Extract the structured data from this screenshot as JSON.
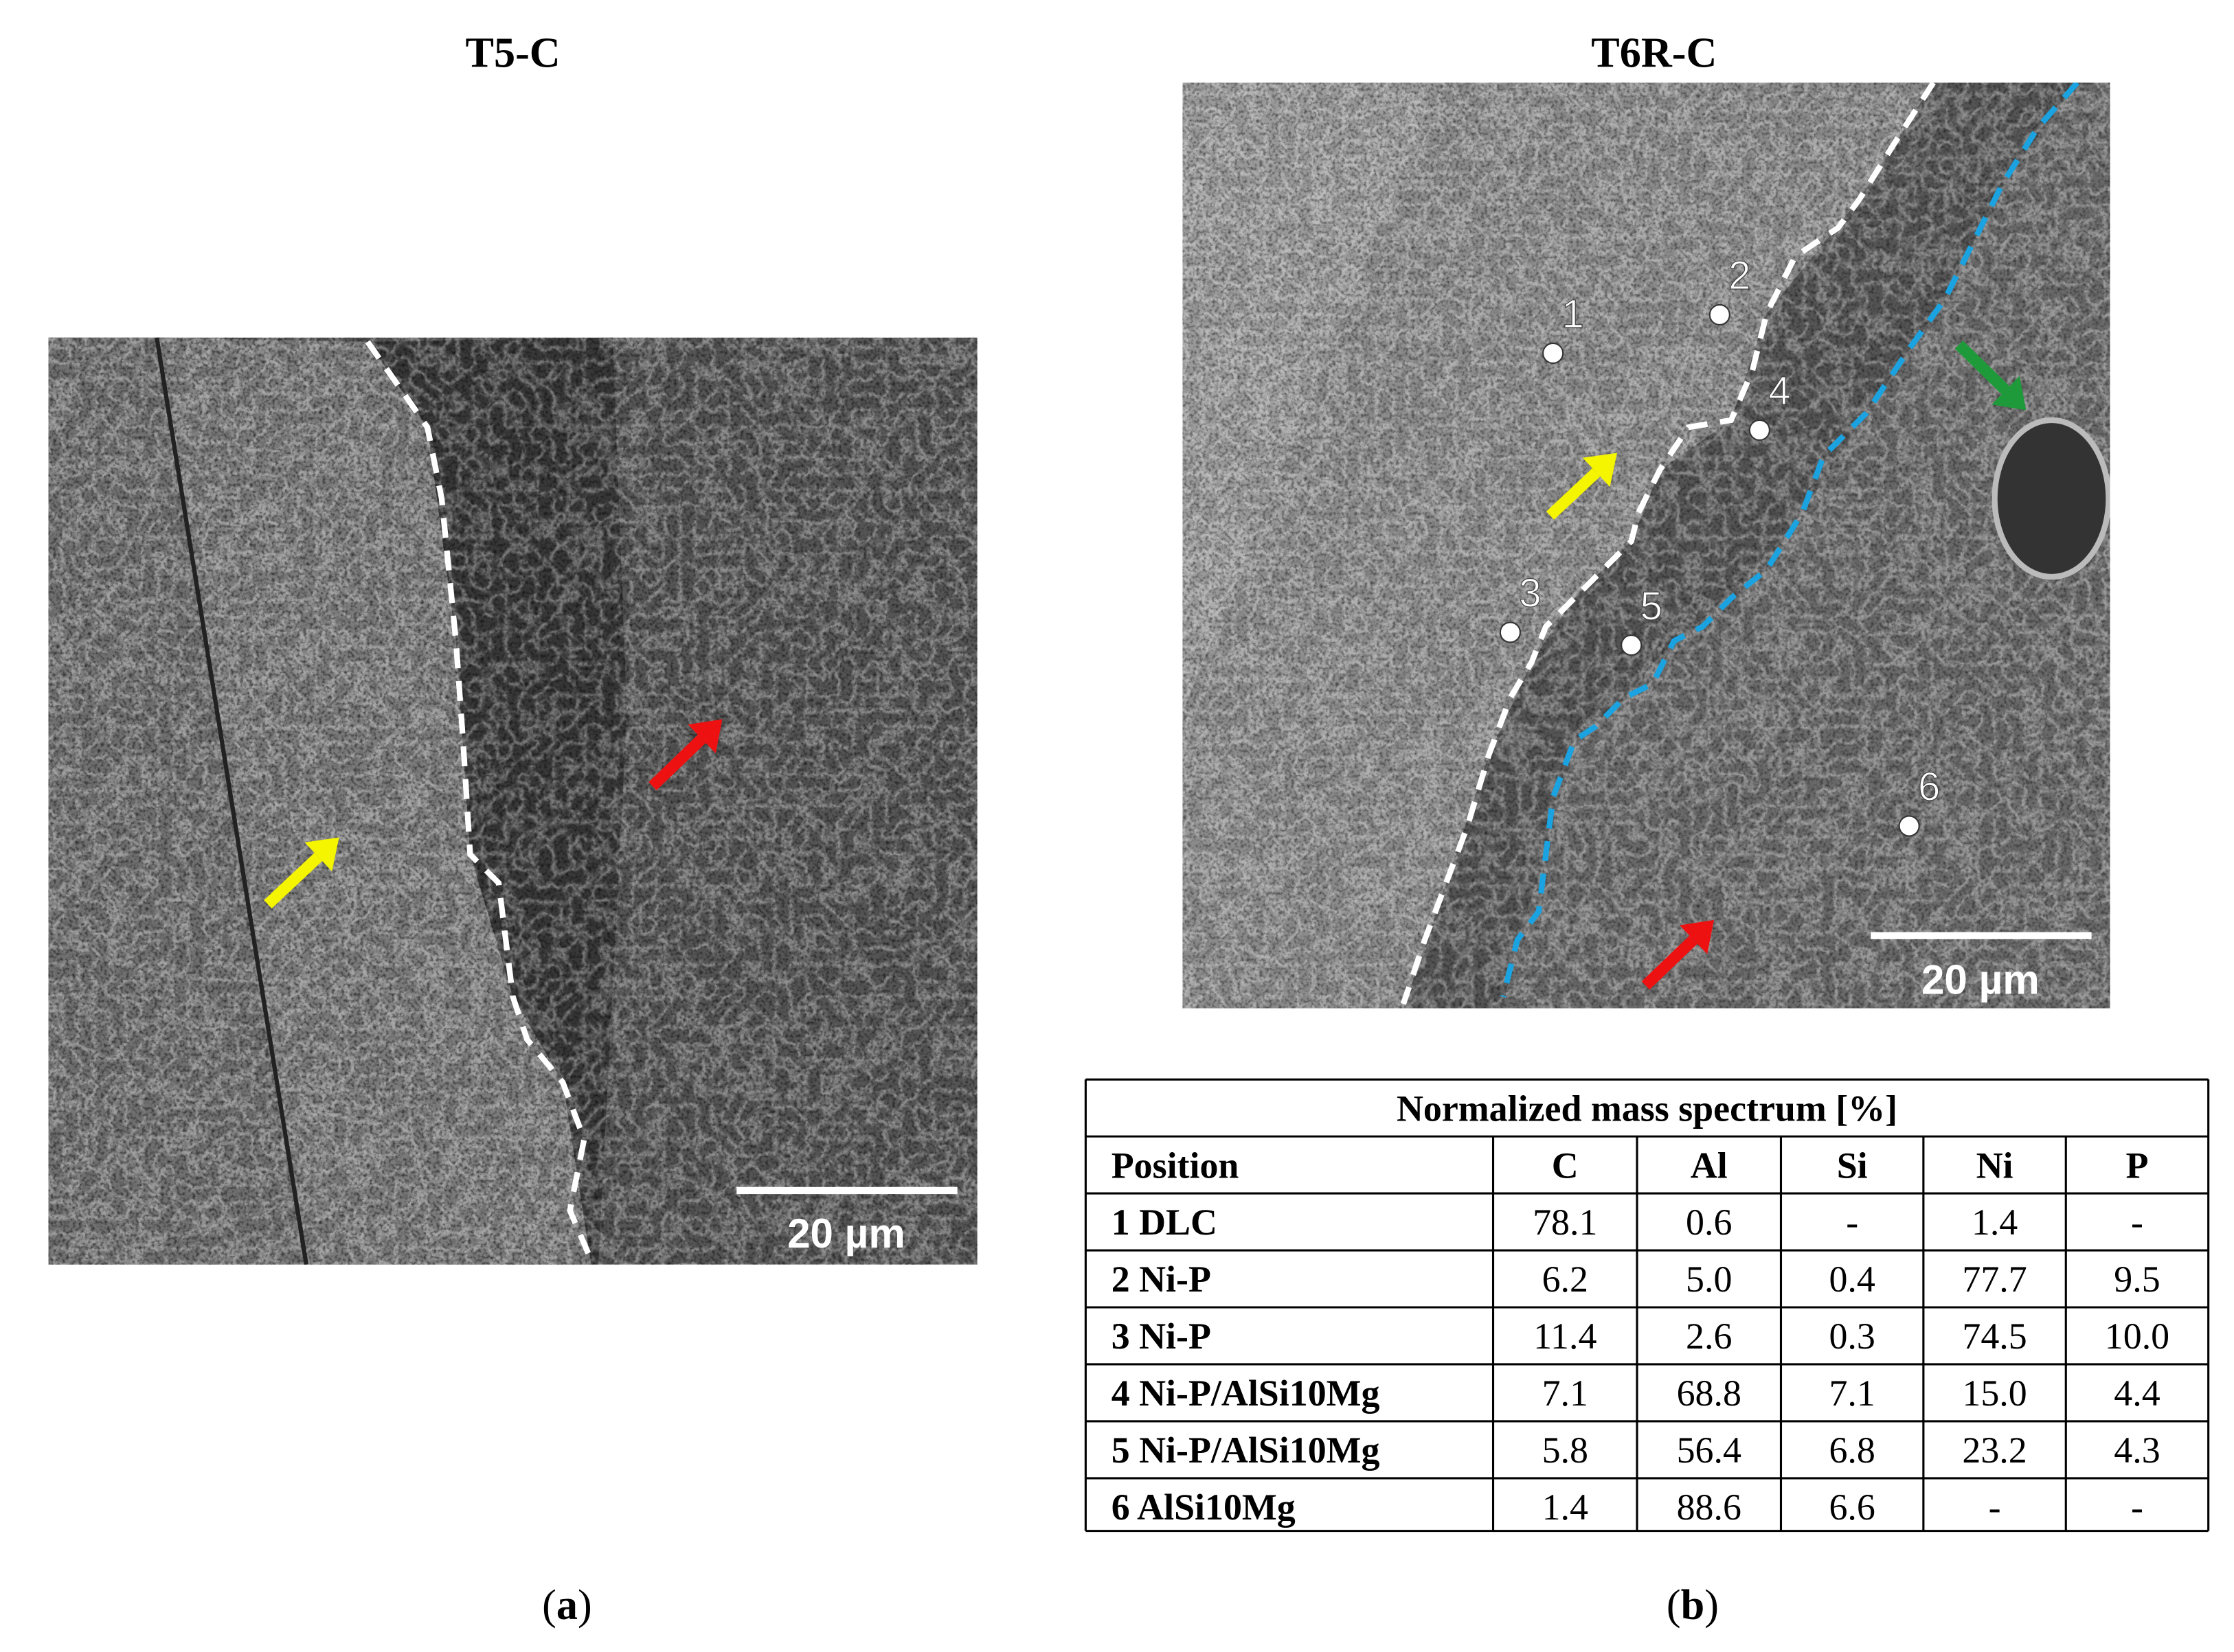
{
  "panels": [
    {
      "title": "T5-C",
      "scale_bar": "20 µm",
      "caption": [
        "(",
        "a",
        ")"
      ]
    },
    {
      "title": "T6R-C",
      "scale_bar": "20 µm",
      "points": [
        "1",
        "2",
        "3",
        "4",
        "5",
        "6"
      ],
      "caption": [
        "(",
        "b",
        ")"
      ]
    }
  ],
  "table": {
    "title": "Normalized mass spectrum [%]",
    "header": [
      "Position",
      "C",
      "Al",
      "Si",
      "Ni",
      "P"
    ],
    "rows": [
      [
        "1 DLC",
        "78.1",
        "0.6",
        "-",
        "1.4",
        "-"
      ],
      [
        "2 Ni-P",
        "6.2",
        "5.0",
        "0.4",
        "77.7",
        "9.5"
      ],
      [
        "3 Ni-P",
        "11.4",
        "2.6",
        "0.3",
        "74.5",
        "10.0"
      ],
      [
        "4 Ni-P/AlSi10Mg",
        "7.1",
        "68.8",
        "7.1",
        "15.0",
        "4.4"
      ],
      [
        "5 Ni-P/AlSi10Mg",
        "5.8",
        "56.4",
        "6.8",
        "23.2",
        "4.3"
      ],
      [
        "6 AlSi10Mg",
        "1.4",
        "88.6",
        "6.6",
        "-",
        "-"
      ]
    ]
  }
}
